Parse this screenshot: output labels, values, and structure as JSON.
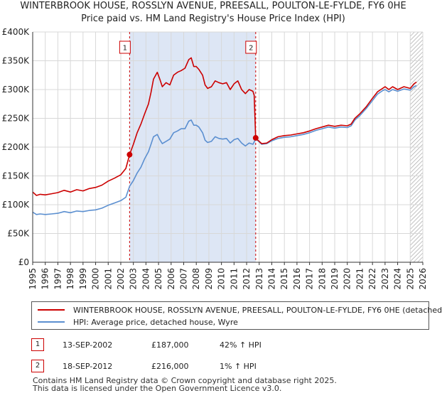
{
  "title": {
    "line1": "WINTERBROOK HOUSE, ROSSLYN AVENUE, PREESALL, POULTON-LE-FYLDE, FY6 0HE",
    "line2": "Price paid vs. HM Land Registry's House Price Index (HPI)"
  },
  "chart_data": {
    "type": "line",
    "xlim": [
      1995,
      2026
    ],
    "ylim": [
      0,
      400000
    ],
    "yticks": [
      0,
      50000,
      100000,
      150000,
      200000,
      250000,
      300000,
      350000,
      400000
    ],
    "ytick_labels": [
      "£0",
      "£50K",
      "£100K",
      "£150K",
      "£200K",
      "£250K",
      "£300K",
      "£350K",
      "£400K"
    ],
    "xtick_labels": [
      "1995",
      "1996",
      "1997",
      "1998",
      "1999",
      "2000",
      "2001",
      "2002",
      "2003",
      "2004",
      "2005",
      "2006",
      "2007",
      "2008",
      "2009",
      "2010",
      "2011",
      "2012",
      "2013",
      "2014",
      "2015",
      "2016",
      "2017",
      "2018",
      "2019",
      "2020",
      "2021",
      "2022",
      "2023",
      "2024",
      "2025",
      "2026"
    ],
    "grid": true,
    "shaded_span": [
      2002.7,
      2012.72
    ],
    "hatched_from": 2025.0,
    "series": [
      {
        "name": "WINTERBROOK HOUSE, ROSSLYN AVENUE, PREESALL, POULTON-LE-FYLDE, FY6 0HE (detached",
        "color": "#cc0000",
        "points": [
          [
            1995.0,
            122000
          ],
          [
            1995.3,
            116000
          ],
          [
            1995.6,
            118000
          ],
          [
            1996.0,
            117000
          ],
          [
            1996.5,
            119000
          ],
          [
            1997.0,
            121000
          ],
          [
            1997.5,
            125000
          ],
          [
            1998.0,
            122000
          ],
          [
            1998.5,
            126000
          ],
          [
            1999.0,
            124000
          ],
          [
            1999.5,
            128000
          ],
          [
            2000.0,
            130000
          ],
          [
            2000.5,
            134000
          ],
          [
            2001.0,
            141000
          ],
          [
            2001.5,
            146000
          ],
          [
            2002.0,
            152000
          ],
          [
            2002.4,
            163000
          ],
          [
            2002.7,
            187000
          ],
          [
            2003.0,
            205000
          ],
          [
            2003.3,
            225000
          ],
          [
            2003.6,
            240000
          ],
          [
            2003.9,
            258000
          ],
          [
            2004.2,
            275000
          ],
          [
            2004.4,
            295000
          ],
          [
            2004.6,
            318000
          ],
          [
            2004.9,
            330000
          ],
          [
            2005.1,
            318000
          ],
          [
            2005.3,
            305000
          ],
          [
            2005.6,
            312000
          ],
          [
            2005.9,
            308000
          ],
          [
            2006.2,
            325000
          ],
          [
            2006.5,
            330000
          ],
          [
            2006.8,
            333000
          ],
          [
            2007.1,
            337000
          ],
          [
            2007.4,
            352000
          ],
          [
            2007.6,
            355000
          ],
          [
            2007.8,
            340000
          ],
          [
            2008.0,
            340000
          ],
          [
            2008.2,
            335000
          ],
          [
            2008.5,
            325000
          ],
          [
            2008.7,
            308000
          ],
          [
            2008.9,
            302000
          ],
          [
            2009.2,
            305000
          ],
          [
            2009.5,
            315000
          ],
          [
            2009.8,
            312000
          ],
          [
            2010.1,
            310000
          ],
          [
            2010.4,
            312000
          ],
          [
            2010.7,
            300000
          ],
          [
            2011.0,
            310000
          ],
          [
            2011.3,
            315000
          ],
          [
            2011.6,
            300000
          ],
          [
            2011.9,
            293000
          ],
          [
            2012.2,
            300000
          ],
          [
            2012.5,
            297000
          ],
          [
            2012.6,
            290000
          ],
          [
            2012.72,
            216000
          ],
          [
            2012.9,
            212000
          ],
          [
            2013.2,
            206000
          ],
          [
            2013.6,
            207000
          ],
          [
            2014.0,
            213000
          ],
          [
            2014.5,
            218000
          ],
          [
            2015.0,
            220000
          ],
          [
            2015.5,
            221000
          ],
          [
            2016.0,
            223000
          ],
          [
            2016.5,
            225000
          ],
          [
            2017.0,
            228000
          ],
          [
            2017.5,
            232000
          ],
          [
            2018.0,
            235000
          ],
          [
            2018.5,
            238000
          ],
          [
            2019.0,
            236000
          ],
          [
            2019.5,
            238000
          ],
          [
            2020.0,
            237000
          ],
          [
            2020.3,
            240000
          ],
          [
            2020.6,
            250000
          ],
          [
            2021.0,
            258000
          ],
          [
            2021.5,
            270000
          ],
          [
            2022.0,
            285000
          ],
          [
            2022.4,
            296000
          ],
          [
            2022.8,
            302000
          ],
          [
            2023.0,
            305000
          ],
          [
            2023.3,
            300000
          ],
          [
            2023.6,
            305000
          ],
          [
            2024.0,
            300000
          ],
          [
            2024.5,
            305000
          ],
          [
            2025.0,
            302000
          ],
          [
            2025.3,
            310000
          ],
          [
            2025.5,
            313000
          ]
        ]
      },
      {
        "name": "HPI: Average price, detached house, Wyre",
        "color": "#5b8fd0",
        "points": [
          [
            1995.0,
            87000
          ],
          [
            1995.3,
            83000
          ],
          [
            1995.6,
            84000
          ],
          [
            1996.0,
            83000
          ],
          [
            1996.5,
            84000
          ],
          [
            1997.0,
            85000
          ],
          [
            1997.5,
            88000
          ],
          [
            1998.0,
            86000
          ],
          [
            1998.5,
            89000
          ],
          [
            1999.0,
            88000
          ],
          [
            1999.5,
            90000
          ],
          [
            2000.0,
            91000
          ],
          [
            2000.5,
            94000
          ],
          [
            2001.0,
            99000
          ],
          [
            2001.5,
            103000
          ],
          [
            2002.0,
            107000
          ],
          [
            2002.4,
            113000
          ],
          [
            2002.7,
            132000
          ],
          [
            2003.0,
            142000
          ],
          [
            2003.3,
            155000
          ],
          [
            2003.6,
            165000
          ],
          [
            2003.9,
            180000
          ],
          [
            2004.2,
            192000
          ],
          [
            2004.4,
            205000
          ],
          [
            2004.6,
            218000
          ],
          [
            2004.9,
            222000
          ],
          [
            2005.1,
            213000
          ],
          [
            2005.3,
            206000
          ],
          [
            2005.6,
            210000
          ],
          [
            2005.9,
            214000
          ],
          [
            2006.2,
            225000
          ],
          [
            2006.5,
            228000
          ],
          [
            2006.8,
            232000
          ],
          [
            2007.1,
            232000
          ],
          [
            2007.4,
            245000
          ],
          [
            2007.6,
            247000
          ],
          [
            2007.8,
            238000
          ],
          [
            2008.0,
            238000
          ],
          [
            2008.2,
            235000
          ],
          [
            2008.5,
            225000
          ],
          [
            2008.7,
            212000
          ],
          [
            2008.9,
            208000
          ],
          [
            2009.2,
            210000
          ],
          [
            2009.5,
            218000
          ],
          [
            2009.8,
            215000
          ],
          [
            2010.1,
            214000
          ],
          [
            2010.4,
            215000
          ],
          [
            2010.7,
            207000
          ],
          [
            2011.0,
            213000
          ],
          [
            2011.3,
            215000
          ],
          [
            2011.6,
            207000
          ],
          [
            2011.9,
            202000
          ],
          [
            2012.2,
            207000
          ],
          [
            2012.5,
            205000
          ],
          [
            2012.72,
            214000
          ],
          [
            2012.9,
            211000
          ],
          [
            2013.2,
            205000
          ],
          [
            2013.6,
            206000
          ],
          [
            2014.0,
            211000
          ],
          [
            2014.5,
            215000
          ],
          [
            2015.0,
            217000
          ],
          [
            2015.5,
            218000
          ],
          [
            2016.0,
            220000
          ],
          [
            2016.5,
            222000
          ],
          [
            2017.0,
            225000
          ],
          [
            2017.5,
            229000
          ],
          [
            2018.0,
            232000
          ],
          [
            2018.5,
            235000
          ],
          [
            2019.0,
            233000
          ],
          [
            2019.5,
            235000
          ],
          [
            2020.0,
            234000
          ],
          [
            2020.3,
            237000
          ],
          [
            2020.6,
            247000
          ],
          [
            2021.0,
            255000
          ],
          [
            2021.5,
            267000
          ],
          [
            2022.0,
            281000
          ],
          [
            2022.4,
            292000
          ],
          [
            2022.8,
            298000
          ],
          [
            2023.0,
            300000
          ],
          [
            2023.3,
            296000
          ],
          [
            2023.6,
            300000
          ],
          [
            2024.0,
            297000
          ],
          [
            2024.5,
            301000
          ],
          [
            2025.0,
            299000
          ],
          [
            2025.3,
            305000
          ],
          [
            2025.5,
            307000
          ]
        ]
      }
    ],
    "sales": [
      {
        "label": "1",
        "x": 2002.7,
        "y": 187000
      },
      {
        "label": "2",
        "x": 2012.72,
        "y": 216000
      }
    ]
  },
  "legend": {
    "property": "WINTERBROOK HOUSE, ROSSLYN AVENUE, PREESALL, POULTON-LE-FYLDE, FY6 0HE (detached",
    "hpi": "HPI: Average price, detached house, Wyre",
    "property_color": "#cc0000",
    "hpi_color": "#5b8fd0"
  },
  "transactions": [
    {
      "num": "1",
      "date": "13-SEP-2002",
      "price": "£187,000",
      "hpi": "42% ↑ HPI"
    },
    {
      "num": "2",
      "date": "18-SEP-2012",
      "price": "£216,000",
      "hpi": "1% ↑ HPI"
    }
  ],
  "footer": {
    "line1": "Contains HM Land Registry data © Crown copyright and database right 2025.",
    "line2": "This data is licensed under the Open Government Licence v3.0."
  }
}
